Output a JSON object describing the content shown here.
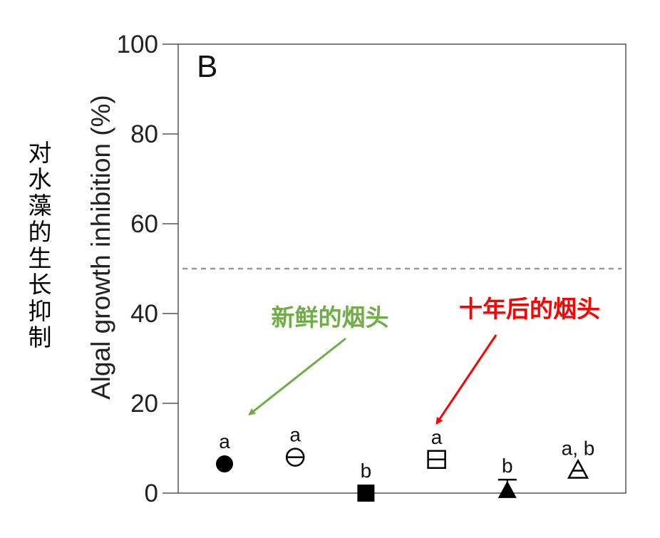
{
  "chinese_ylabel_chars": [
    "对",
    "水",
    "藻",
    "的",
    "生",
    "长",
    "抑",
    "制"
  ],
  "chart_data": {
    "type": "scatter",
    "panel_label": "B",
    "ylabel": "Algal growth inhibition (%)",
    "xlabel": "",
    "ylim": [
      0,
      100
    ],
    "yticks": [
      0,
      20,
      40,
      60,
      80,
      100
    ],
    "grid": false,
    "reference_line": {
      "y": 50,
      "style": "dashed",
      "color": "#999999"
    },
    "points": [
      {
        "x": 1,
        "y": 6.5,
        "marker": "circle-filled",
        "error": 0,
        "letter": "a"
      },
      {
        "x": 2,
        "y": 8.0,
        "marker": "circle-open-bar",
        "error": 0,
        "letter": "a"
      },
      {
        "x": 3,
        "y": 0.0,
        "marker": "square-filled",
        "error": 0,
        "letter": "b"
      },
      {
        "x": 4,
        "y": 7.5,
        "marker": "square-open-bar",
        "error": 0,
        "letter": "a"
      },
      {
        "x": 5,
        "y": 0.5,
        "marker": "triangle-filled",
        "error": 2.5,
        "letter": "b"
      },
      {
        "x": 6,
        "y": 5.0,
        "marker": "triangle-open-bar",
        "error": 0,
        "letter": "a, b"
      }
    ],
    "annotations": [
      {
        "text": "新鲜的烟头",
        "color": "#70ad47",
        "arrow_to": {
          "x": 1.35,
          "y": 17.5
        }
      },
      {
        "text": "十年后的烟头",
        "color": "#ff0000",
        "arrow_to": {
          "x": 4.0,
          "y": 15.5
        }
      }
    ]
  }
}
